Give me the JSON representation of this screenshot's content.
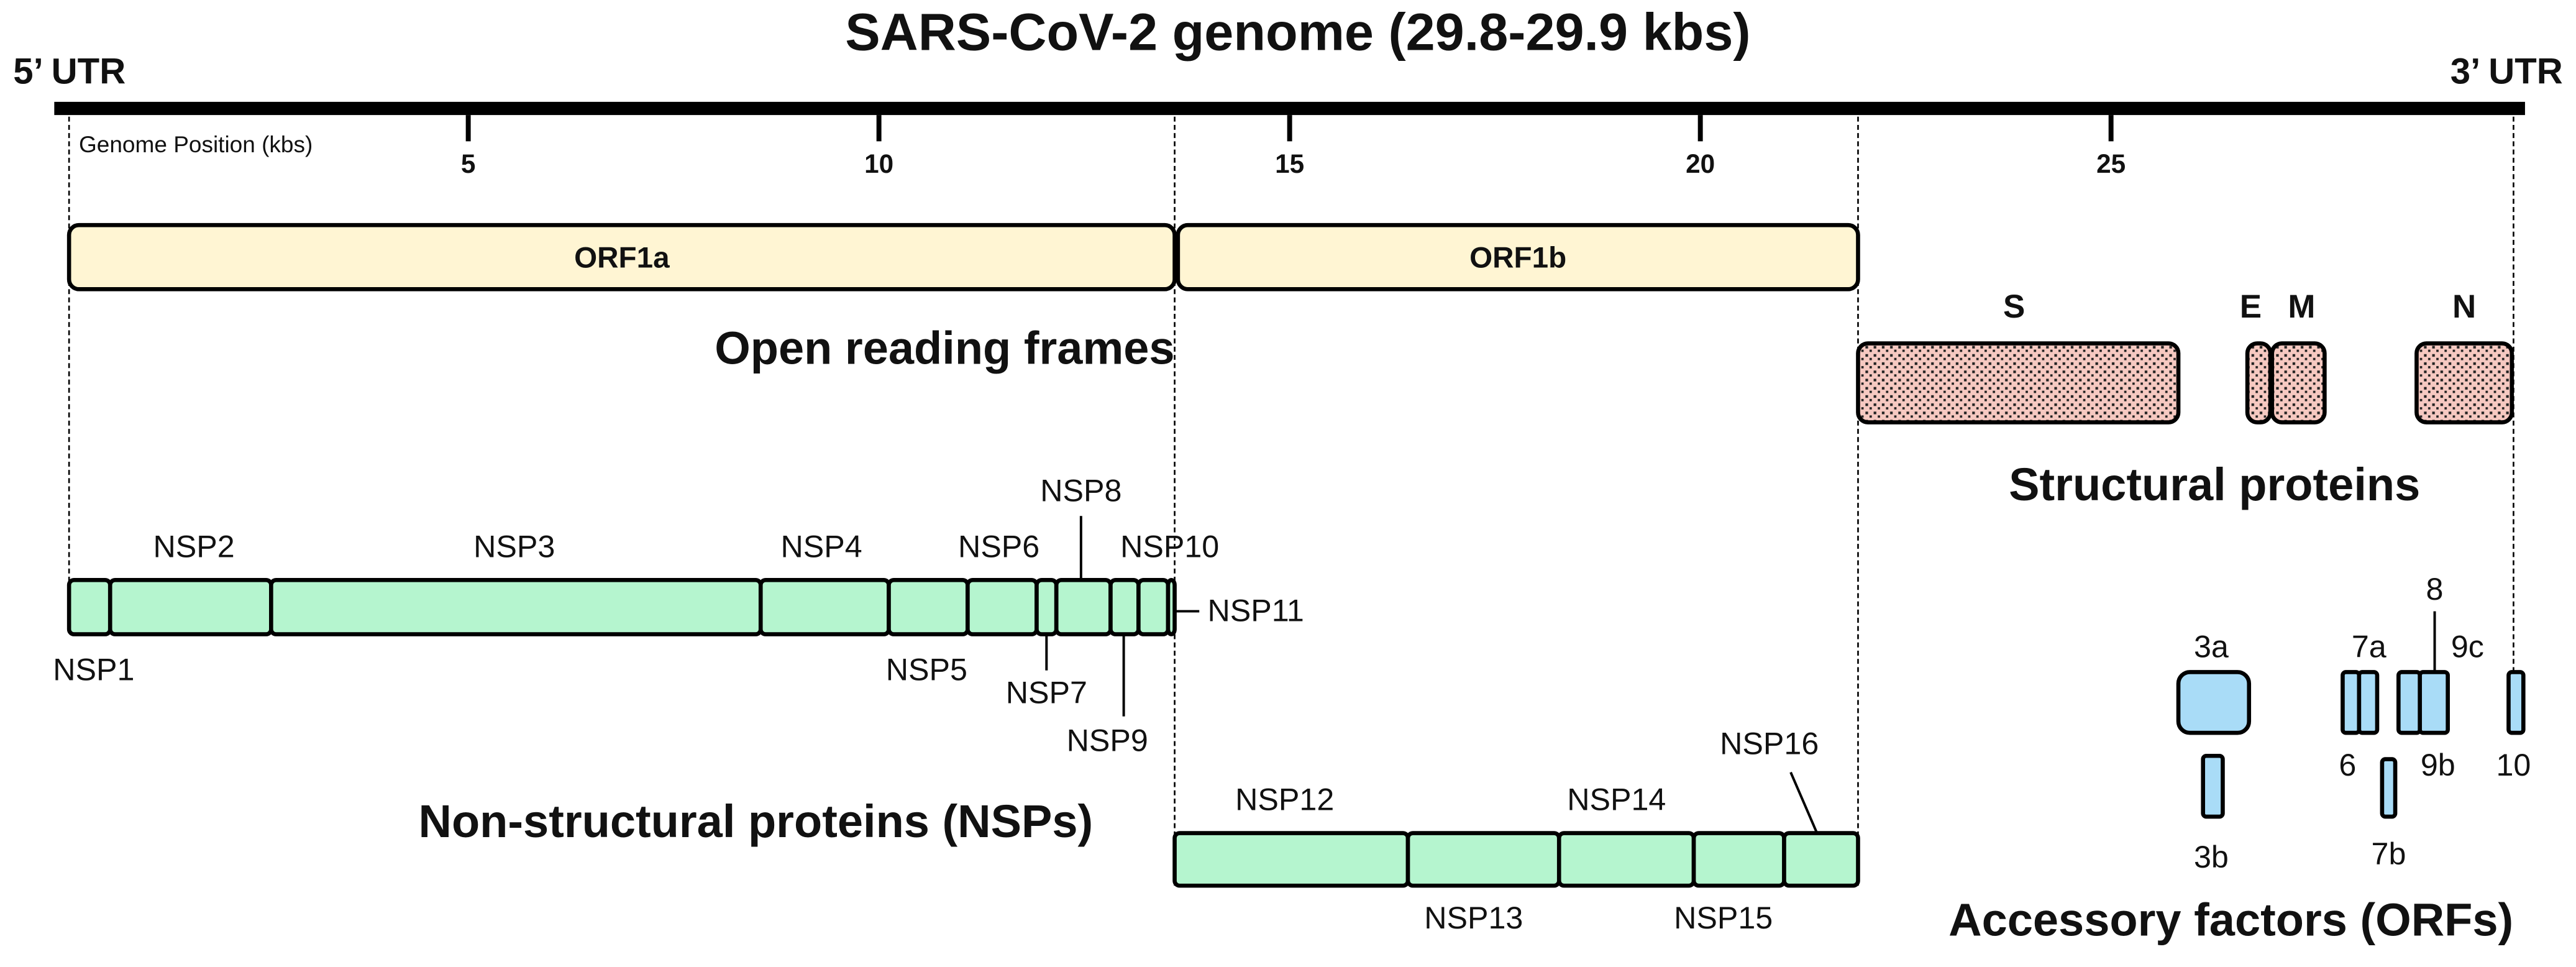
{
  "title": "SARS-CoV-2 genome (29.8-29.9 kbs)",
  "utr_left": "5’ UTR",
  "utr_right": "3’ UTR",
  "axis": {
    "label": "Genome Position (kbs)",
    "xlim": [
      0,
      30
    ],
    "ticks": [
      5,
      10,
      15,
      20,
      25
    ]
  },
  "orfs": {
    "title": "Open reading frames",
    "items": [
      "ORF1a",
      "ORF1b"
    ]
  },
  "structural": {
    "title": "Structural proteins",
    "items": [
      "S",
      "E",
      "M",
      "N"
    ]
  },
  "nsps": {
    "title": "Non-structural proteins (NSPs)",
    "items": [
      "NSP1",
      "NSP2",
      "NSP3",
      "NSP4",
      "NSP5",
      "NSP6",
      "NSP7",
      "NSP8",
      "NSP9",
      "NSP10",
      "NSP11",
      "NSP12",
      "NSP13",
      "NSP14",
      "NSP15",
      "NSP16"
    ]
  },
  "accessory": {
    "title": "Accessory factors (ORFs)",
    "items": [
      "3a",
      "3b",
      "6",
      "7a",
      "7b",
      "8",
      "9b",
      "9c",
      "10"
    ]
  }
}
